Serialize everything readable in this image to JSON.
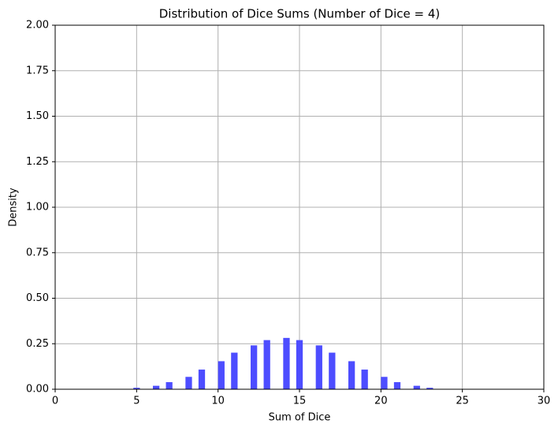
{
  "chart_data": {
    "type": "histogram",
    "title": "Distribution of Dice Sums (Number of Dice = 4)",
    "x_label": "Sum of Dice",
    "y_label": "Density",
    "bins": [
      4,
      4.4,
      4.8,
      5.2,
      5.6,
      6,
      6.4,
      6.8,
      7.2,
      7.6,
      8,
      8.4,
      8.8,
      9.2,
      9.6,
      10,
      10.4,
      10.8,
      11.2,
      11.6,
      12,
      12.4,
      12.8,
      13.2,
      13.6,
      14,
      14.4,
      14.8,
      15.2,
      15.6,
      16,
      16.4,
      16.8,
      17.2,
      17.6,
      18,
      18.4,
      18.8,
      19.2,
      19.6,
      20,
      20.4,
      20.8,
      21.2,
      21.6,
      22,
      22.4,
      22.8,
      23.2,
      23.6,
      24
    ],
    "values": [
      0.002,
      0,
      0.008,
      0,
      0,
      0.019,
      0,
      0.039,
      0,
      0,
      0.068,
      0,
      0.108,
      0,
      0,
      0.154,
      0,
      0.201,
      0,
      0,
      0.241,
      0,
      0.27,
      0,
      0,
      0.282,
      0,
      0.27,
      0,
      0,
      0.241,
      0,
      0.201,
      0,
      0,
      0.154,
      0,
      0.108,
      0,
      0,
      0.068,
      0,
      0.039,
      0,
      0,
      0.019,
      0,
      0.008,
      0,
      0.002
    ],
    "color": "#4d4dff",
    "xlim": [
      0,
      30
    ],
    "xticks": [
      0,
      5,
      10,
      15,
      20,
      25,
      30
    ],
    "ylim": [
      0,
      2
    ],
    "yticks": [
      {
        "value": 0,
        "label": "0.00"
      },
      {
        "value": 0.25,
        "label": "0.25"
      },
      {
        "value": 0.5,
        "label": "0.50"
      },
      {
        "value": 0.75,
        "label": "0.75"
      },
      {
        "value": 1,
        "label": "1.00"
      },
      {
        "value": 1.25,
        "label": "1.25"
      },
      {
        "value": 1.5,
        "label": "1.50"
      },
      {
        "value": 1.75,
        "label": "1.75"
      },
      {
        "value": 2,
        "label": "2.00"
      }
    ],
    "grid": true
  }
}
